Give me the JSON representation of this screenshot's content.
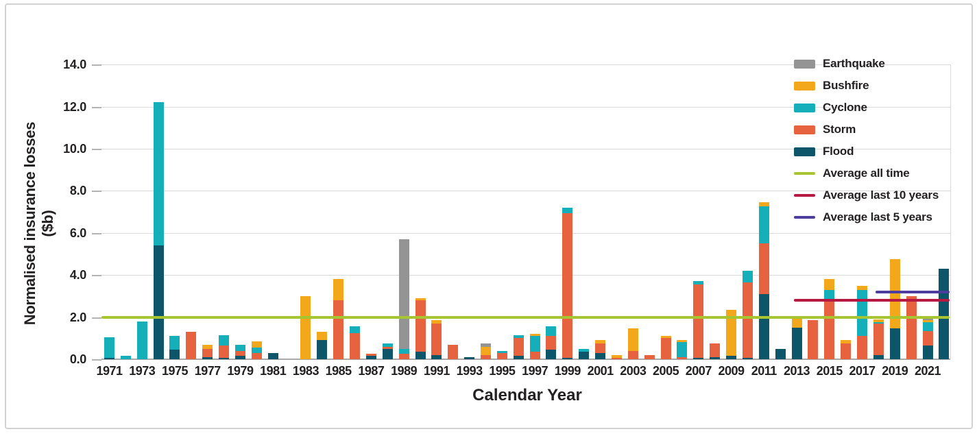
{
  "chart_data": {
    "type": "bar",
    "variant": "stacked",
    "title": "",
    "xlabel": "Calendar Year",
    "ylabel": "Normalised insurance losses ($b)",
    "ylim": [
      0,
      14
    ],
    "ytick_values": [
      0,
      2,
      4,
      6,
      8,
      10,
      12,
      14
    ],
    "ytick_labels": [
      "0.0",
      "2.0",
      "4.0",
      "6.0",
      "8.0",
      "10.0",
      "12.0",
      "14.0"
    ],
    "xtick_years": [
      1971,
      1973,
      1975,
      1977,
      1979,
      1981,
      1983,
      1985,
      1987,
      1989,
      1991,
      1993,
      1995,
      1997,
      1999,
      2001,
      2003,
      2005,
      2007,
      2009,
      2011,
      2013,
      2015,
      2017,
      2019,
      2021
    ],
    "years": [
      1971,
      1972,
      1973,
      1974,
      1975,
      1976,
      1977,
      1978,
      1979,
      1980,
      1981,
      1982,
      1983,
      1984,
      1985,
      1986,
      1987,
      1988,
      1989,
      1990,
      1991,
      1992,
      1993,
      1994,
      1995,
      1996,
      1997,
      1998,
      1999,
      2000,
      2001,
      2002,
      2003,
      2004,
      2005,
      2006,
      2007,
      2008,
      2009,
      2010,
      2011,
      2012,
      2013,
      2014,
      2015,
      2016,
      2017,
      2018,
      2019,
      2020,
      2021,
      2022
    ],
    "stack_order": [
      "Flood",
      "Storm",
      "Cyclone",
      "Bushfire",
      "Earthquake"
    ],
    "grid": "horizontal",
    "legend_position": "top-right",
    "series": [
      {
        "name": "Earthquake",
        "color": "#949494",
        "values": [
          0,
          0,
          0,
          0,
          0,
          0,
          0,
          0,
          0,
          0,
          0,
          0,
          0,
          0,
          0,
          0,
          0,
          0,
          5.2,
          0,
          0,
          0,
          0,
          0.15,
          0,
          0,
          0,
          0,
          0,
          0,
          0,
          0,
          0,
          0,
          0,
          0,
          0,
          0,
          0,
          0,
          0,
          0,
          0,
          0,
          0,
          0,
          0,
          0,
          0,
          0,
          0.1,
          0
        ]
      },
      {
        "name": "Bushfire",
        "color": "#f3a81c",
        "values": [
          0,
          0,
          0,
          0,
          0,
          0,
          0.2,
          0,
          0,
          0.3,
          0,
          0,
          3.0,
          0.4,
          1.0,
          0,
          0,
          0,
          0,
          0.1,
          0.15,
          0,
          0,
          0.4,
          0,
          0,
          0.1,
          0,
          0,
          0,
          0.15,
          0.15,
          1.05,
          0,
          0.1,
          0.1,
          0,
          0,
          2.2,
          0,
          0.2,
          0,
          0.45,
          0,
          0.5,
          0.15,
          0.2,
          0.15,
          3.3,
          0,
          0.1,
          0
        ]
      },
      {
        "name": "Cyclone",
        "color": "#15afba",
        "values": [
          1.0,
          0.15,
          1.8,
          6.8,
          0.65,
          0,
          0,
          0.5,
          0.3,
          0.25,
          0,
          0,
          0,
          0,
          0,
          0.3,
          0,
          0.15,
          0.25,
          0,
          0,
          0,
          0,
          0,
          0.1,
          0.15,
          0.75,
          0.45,
          0.25,
          0.15,
          0,
          0,
          0,
          0,
          0,
          0.7,
          0.15,
          0,
          0,
          0.55,
          1.75,
          0,
          0,
          0,
          0.55,
          0,
          2.2,
          0.05,
          0,
          0,
          0.4,
          0
        ]
      },
      {
        "name": "Storm",
        "color": "#e7623e",
        "values": [
          0,
          0,
          0,
          0,
          0,
          1.3,
          0.4,
          0.6,
          0.25,
          0.3,
          0,
          0,
          0,
          0,
          2.8,
          1.25,
          0.1,
          0.1,
          0.25,
          2.45,
          1.5,
          0.7,
          0,
          0.2,
          0.3,
          0.85,
          0.35,
          0.65,
          6.9,
          0,
          0.45,
          0.05,
          0.4,
          0.2,
          1.0,
          0.1,
          3.5,
          0.65,
          0,
          3.6,
          2.4,
          0,
          0,
          1.85,
          2.75,
          0.75,
          1.1,
          1.5,
          0,
          3.0,
          0.7,
          0
        ]
      },
      {
        "name": "Flood",
        "color": "#0d566a",
        "values": [
          0.05,
          0,
          0,
          5.4,
          0.45,
          0,
          0.1,
          0.05,
          0.15,
          0,
          0.3,
          0,
          0,
          0.9,
          0,
          0,
          0.15,
          0.5,
          0,
          0.35,
          0.2,
          0,
          0.1,
          0,
          0,
          0.15,
          0,
          0.45,
          0.05,
          0.35,
          0.3,
          0,
          0,
          0,
          0,
          0,
          0.05,
          0.1,
          0.15,
          0.05,
          3.1,
          0.5,
          1.5,
          0,
          0,
          0,
          0,
          0.2,
          1.45,
          0,
          0.65,
          4.3
        ]
      }
    ],
    "reference_lines": [
      {
        "label": "Average all time",
        "value": 2.0,
        "color": "#a6c531",
        "year_start": 1971,
        "year_end": 2022,
        "full_width": true
      },
      {
        "label": "Average last 10 years",
        "value": 2.8,
        "color": "#b61941",
        "year_start": 2013,
        "year_end": 2022,
        "full_width": false
      },
      {
        "label": "Average last 5 years",
        "value": 3.2,
        "color": "#4c3d9f",
        "year_start": 2018,
        "year end": 2022,
        "full_width": false
      }
    ]
  }
}
